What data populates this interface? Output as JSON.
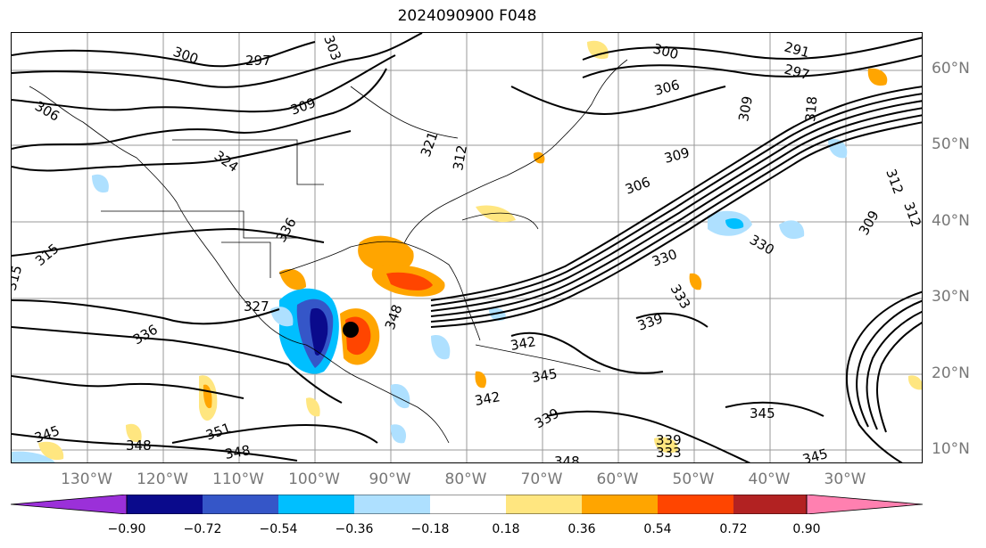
{
  "title": "2024090900 F048",
  "lat_labels": [
    "60°N",
    "50°N",
    "40°N",
    "30°N",
    "20°N",
    "10°N"
  ],
  "lon_labels": [
    "130°W",
    "120°W",
    "110°W",
    "100°W",
    "90°W",
    "80°W",
    "70°W",
    "60°W",
    "50°W",
    "40°W",
    "30°W"
  ],
  "contour_labels": [
    "300",
    "297",
    "303",
    "309",
    "306",
    "291",
    "297",
    "300",
    "306",
    "309",
    "318",
    "312",
    "324",
    "321",
    "312",
    "309",
    "306",
    "315",
    "330",
    "336",
    "342",
    "339",
    "345",
    "348",
    "351",
    "348",
    "342",
    "345",
    "339",
    "330",
    "333",
    "309",
    "312",
    "348",
    "339",
    "333",
    "345",
    "348",
    "345",
    "327",
    "336",
    "315"
  ],
  "colorbar": {
    "tick_labels": [
      "−0.90",
      "−0.72",
      "−0.54",
      "−0.36",
      "−0.18",
      "0.18",
      "0.36",
      "0.54",
      "0.72",
      "0.90"
    ],
    "colors": [
      "#9b30d9",
      "#0a0a8c",
      "#3556c8",
      "#00bfff",
      "#aee0ff",
      "#ffffff",
      "#ffe680",
      "#ffa500",
      "#ff4500",
      "#b22222",
      "#ff80b0"
    ]
  },
  "legend_colors": {
    "strong_negative": "#0a0a8c",
    "moderate_negative": "#3556c8",
    "weak_negative": "#00bfff",
    "faint_negative": "#aee0ff",
    "faint_positive": "#ffe680",
    "weak_positive": "#ffa500",
    "moderate_positive": "#ff4500",
    "strong_positive": "#b22222"
  },
  "map": {
    "storm_marker": "black-dot",
    "grid": true,
    "coastlines": true
  }
}
